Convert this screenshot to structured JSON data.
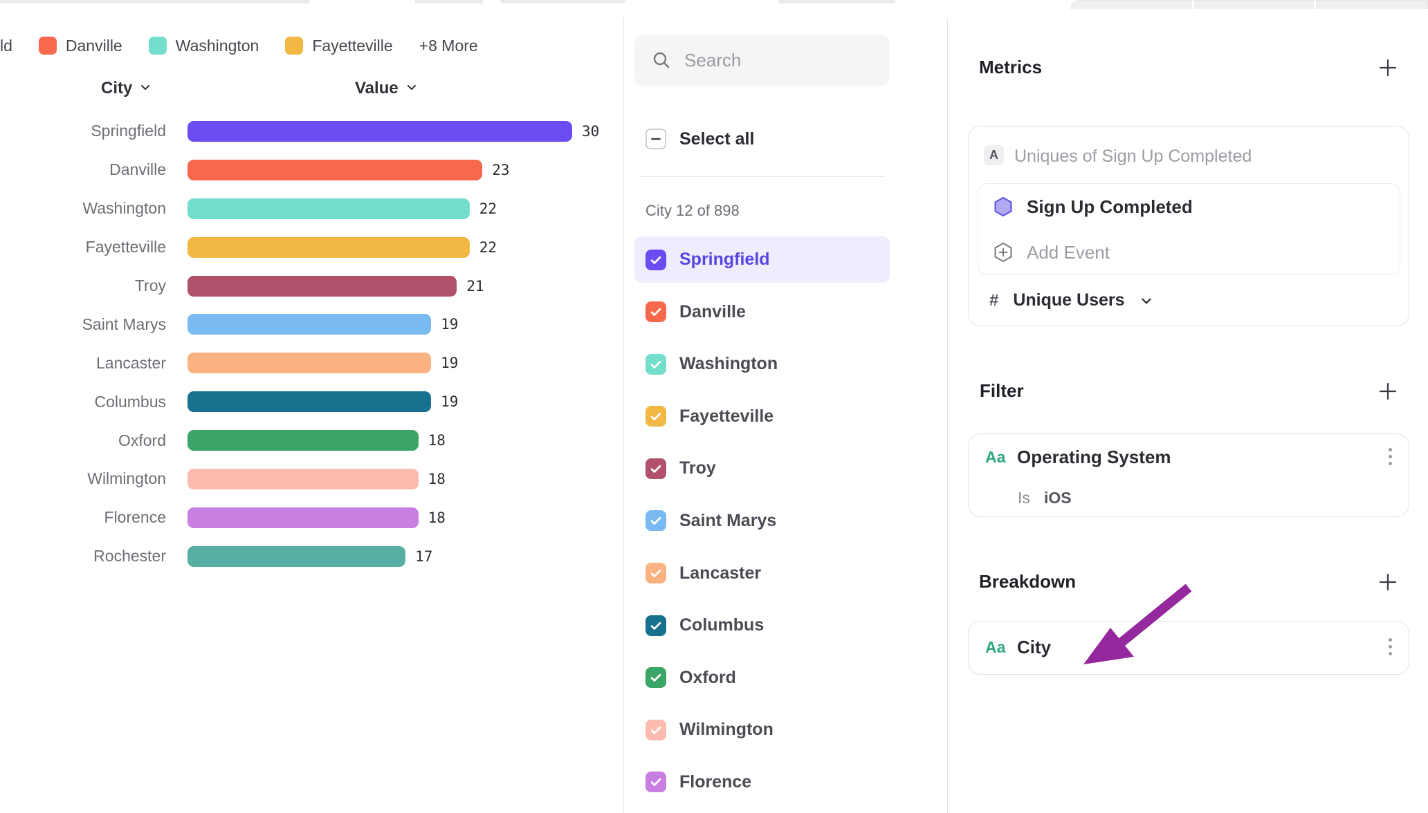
{
  "legend": {
    "items": [
      {
        "label": "ld",
        "color": null
      },
      {
        "label": "Danville",
        "color": "#F7684C"
      },
      {
        "label": "Washington",
        "color": "#73DECC"
      },
      {
        "label": "Fayetteville",
        "color": "#F2B843"
      },
      {
        "label": "+8 More",
        "color": null
      }
    ]
  },
  "chart_data": {
    "type": "bar",
    "orientation": "horizontal",
    "column_headers": {
      "category": "City",
      "value": "Value"
    },
    "categories": [
      "Springfield",
      "Danville",
      "Washington",
      "Fayetteville",
      "Troy",
      "Saint Marys",
      "Lancaster",
      "Columbus",
      "Oxford",
      "Wilmington",
      "Florence",
      "Rochester"
    ],
    "values": [
      30,
      23,
      22,
      22,
      21,
      19,
      19,
      19,
      18,
      18,
      18,
      17
    ],
    "colors": [
      "#6C4CF1",
      "#F7684C",
      "#73DECC",
      "#F2B843",
      "#B2516C",
      "#7ABAF2",
      "#FAB380",
      "#17718F",
      "#3BA567",
      "#FBBCAF",
      "#C97EE2",
      "#56AFA2"
    ],
    "xlim": [
      0,
      30
    ],
    "grid": false,
    "legend_position": "top"
  },
  "city_selector": {
    "search_placeholder": "Search",
    "search_icon": "magnifier",
    "select_all_label": "Select all",
    "select_all_state": "indeterminate",
    "count_label": "City 12 of 898",
    "items": [
      {
        "label": "Springfield",
        "color": "#6C4CF1",
        "checked": true,
        "selected": true
      },
      {
        "label": "Danville",
        "color": "#F7684C",
        "checked": true,
        "selected": false
      },
      {
        "label": "Washington",
        "color": "#73DECC",
        "checked": true,
        "selected": false
      },
      {
        "label": "Fayetteville",
        "color": "#F2B843",
        "checked": true,
        "selected": false
      },
      {
        "label": "Troy",
        "color": "#B2516C",
        "checked": true,
        "selected": false
      },
      {
        "label": "Saint Marys",
        "color": "#7ABAF2",
        "checked": true,
        "selected": false
      },
      {
        "label": "Lancaster",
        "color": "#FAB380",
        "checked": true,
        "selected": false
      },
      {
        "label": "Columbus",
        "color": "#17718F",
        "checked": true,
        "selected": false
      },
      {
        "label": "Oxford",
        "color": "#3BA567",
        "checked": true,
        "selected": false
      },
      {
        "label": "Wilmington",
        "color": "#FBBCAF",
        "checked": true,
        "selected": false
      },
      {
        "label": "Florence",
        "color": "#C97EE2",
        "checked": true,
        "selected": false
      }
    ]
  },
  "panel": {
    "metrics": {
      "heading": "Metrics",
      "add_button": "+",
      "series_badge": "A",
      "series_label": "Uniques of Sign Up Completed",
      "event_name": "Sign Up Completed",
      "add_event_label": "Add Event",
      "measure_hash": "#",
      "measure_label": "Unique Users"
    },
    "filter": {
      "heading": "Filter",
      "add_button": "+",
      "property_type": "Aa",
      "property": "Operating System",
      "operator": "Is",
      "value": "iOS"
    },
    "breakdown": {
      "heading": "Breakdown",
      "add_button": "+",
      "property_type": "Aa",
      "property": "City"
    }
  },
  "colors": {
    "accent": "#6C4CF1",
    "selected_row_bg": "#EFECFD",
    "selected_text": "#5746E3",
    "property_type_green": "#2FA87B",
    "annotation_arrow": "#94289C"
  }
}
